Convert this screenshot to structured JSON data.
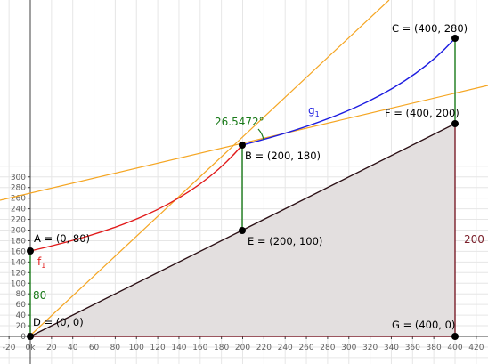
{
  "colors": {
    "background": "#ffffff",
    "grid": "#e6e6e6",
    "axis": "#404040",
    "triangle_fill": "#e3dfdf",
    "triangle_edge": "#2b0f14",
    "f_curve": "#e11a1a",
    "g_curve": "#1c1ce0",
    "tangent": "#f5a623",
    "segment": "#1a7a1a",
    "angle_arc": "#1a7a1a",
    "vertical_side": "#7a1f2a",
    "point": "#000000"
  },
  "axes": {
    "x_ticks": [
      "-20",
      "0k",
      "20",
      "40",
      "60",
      "80",
      "100",
      "120",
      "140",
      "160",
      "180",
      "200",
      "220",
      "240",
      "260",
      "280",
      "300",
      "320",
      "340",
      "360",
      "380",
      "400",
      "420"
    ],
    "y_ticks": [
      "0",
      "20",
      "40",
      "60",
      "80",
      "100",
      "120",
      "140",
      "160",
      "180",
      "200",
      "220",
      "240",
      "260",
      "280",
      "300"
    ]
  },
  "curves": {
    "f": {
      "label": "f",
      "subscript": "1"
    },
    "g": {
      "label": "g",
      "subscript": "1"
    }
  },
  "points": [
    {
      "id": "A",
      "label": "A = (0, 80)"
    },
    {
      "id": "B",
      "label": "B = (200, 180)"
    },
    {
      "id": "C",
      "label": "C = (400, 280)"
    },
    {
      "id": "D",
      "label": "D = (0, 0)"
    },
    {
      "id": "E",
      "label": "E = (200, 100)"
    },
    {
      "id": "F",
      "label": "F = (400, 200)"
    },
    {
      "id": "G",
      "label": "G = (400, 0)"
    }
  ],
  "angle": {
    "label": "26.5472°"
  },
  "segment_labels": {
    "ad": "80",
    "fg": "200"
  }
}
